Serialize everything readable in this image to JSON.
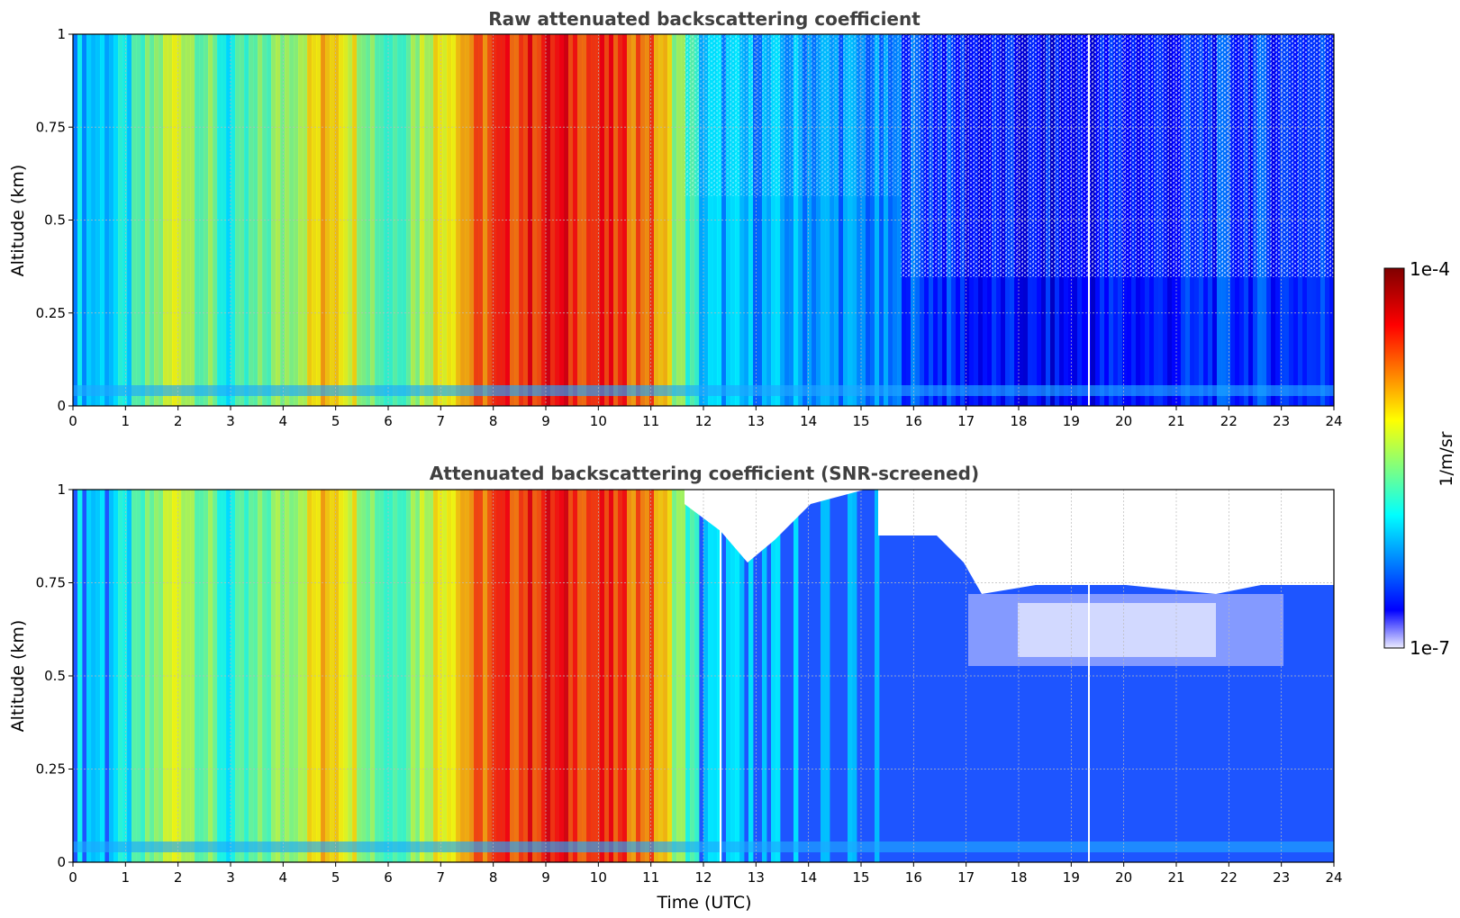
{
  "chart_data": [
    {
      "type": "heatmap",
      "title": "Raw attenuated backscattering coefficient",
      "xlabel": "",
      "ylabel": "Altitude (km)",
      "xlim": [
        0,
        24
      ],
      "ylim": [
        0,
        1
      ],
      "xticks": [
        "0",
        "1",
        "2",
        "3",
        "4",
        "5",
        "6",
        "7",
        "8",
        "9",
        "10",
        "11",
        "12",
        "13",
        "14",
        "15",
        "16",
        "17",
        "18",
        "19",
        "20",
        "21",
        "22",
        "23",
        "24"
      ],
      "yticks": [
        "0",
        "0.25",
        "0.5",
        "0.75",
        "1"
      ],
      "grid": true,
      "screened": false,
      "colorscale": "jet",
      "z_scale": "log",
      "z_range": [
        "1e-7",
        "1e-4"
      ],
      "profile_log10_by_hour": [
        -6.3,
        -6.2,
        -5.3,
        -6.1,
        -5.6,
        -5.0,
        -5.9,
        -5.2,
        -4.7,
        -4.5,
        -4.6,
        -4.8,
        -6.3,
        -6.4,
        -6.4,
        -6.5,
        -6.7,
        -6.9,
        -7.0,
        -7.0,
        -6.9,
        -6.9,
        -6.8,
        -6.8,
        -6.8
      ]
    },
    {
      "type": "heatmap",
      "title": "Attenuated backscattering coefficient (SNR-screened)",
      "xlabel": "Time (UTC)",
      "ylabel": "Altitude (km)",
      "xlim": [
        0,
        24
      ],
      "ylim": [
        0,
        1
      ],
      "xticks": [
        "0",
        "1",
        "2",
        "3",
        "4",
        "5",
        "6",
        "7",
        "8",
        "9",
        "10",
        "11",
        "12",
        "13",
        "14",
        "15",
        "16",
        "17",
        "18",
        "19",
        "20",
        "21",
        "22",
        "23",
        "24"
      ],
      "yticks": [
        "0",
        "0.25",
        "0.5",
        "0.75",
        "1"
      ],
      "grid": true,
      "screened": true,
      "colorscale": "jet",
      "z_scale": "log",
      "z_range": [
        "1e-7",
        "1e-4"
      ]
    }
  ],
  "colorbar": {
    "label": "1/m/sr",
    "max_label": "1e-4",
    "min_label": "1e-7"
  }
}
